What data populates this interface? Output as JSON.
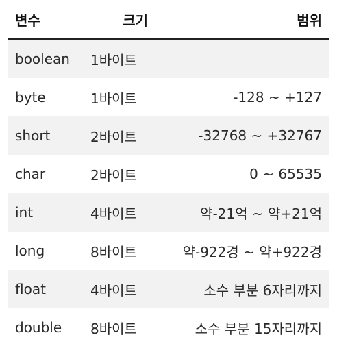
{
  "table": {
    "headers": {
      "name": "변수",
      "size": "크기",
      "range": "범위"
    },
    "rows": [
      {
        "name": "boolean",
        "size": "1바이트",
        "range": ""
      },
      {
        "name": "byte",
        "size": "1바이트",
        "range": "-128 ~ +127"
      },
      {
        "name": "short",
        "size": "2바이트",
        "range": "-32768 ~ +32767"
      },
      {
        "name": "char",
        "size": "2바이트",
        "range": "0 ~ 65535"
      },
      {
        "name": "int",
        "size": "4바이트",
        "range": "약-21억 ~ 약+21억"
      },
      {
        "name": "long",
        "size": "8바이트",
        "range": "약-922경 ~ 약+922경"
      },
      {
        "name": "float",
        "size": "4바이트",
        "range": "소수 부분 6자리까지"
      },
      {
        "name": "double",
        "size": "8바이트",
        "range": "소수 부분 15자리까지"
      }
    ]
  },
  "colors": {
    "stripe": "#f2f2f2",
    "header_rule": "#222222",
    "text": "#222222"
  }
}
